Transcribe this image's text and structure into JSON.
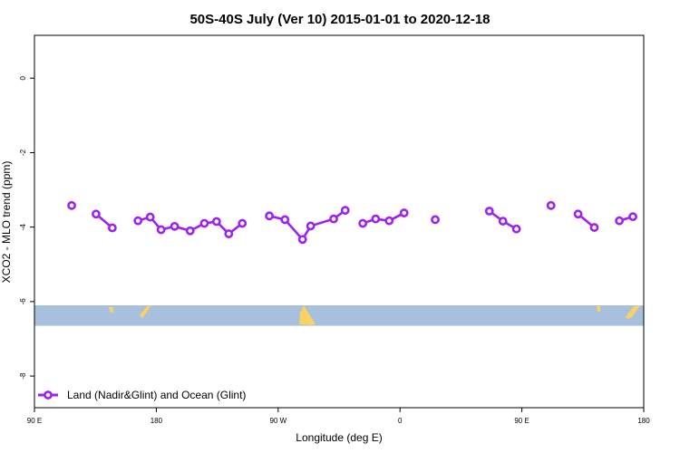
{
  "chart_data": {
    "type": "line",
    "title": "50S-40S July (Ver 10)   2015-01-01 to 2020-12-18",
    "xlabel": "Longitude (deg E)",
    "ylabel": "XCO2 - MLO trend (ppm)",
    "xlim": [
      90,
      540
    ],
    "ylim": [
      -8.85,
      1.15
    ],
    "x_ticks": [
      {
        "value": 90,
        "label": "90 E"
      },
      {
        "value": 180,
        "label": "180"
      },
      {
        "value": 270,
        "label": "90 W"
      },
      {
        "value": 360,
        "label": "0"
      },
      {
        "value": 450,
        "label": "90 E"
      },
      {
        "value": 540,
        "label": "180"
      }
    ],
    "y_ticks": [
      {
        "value": 0,
        "label": "0"
      },
      {
        "value": -2,
        "label": "-2"
      },
      {
        "value": -4,
        "label": "-4"
      },
      {
        "value": -6,
        "label": "-6"
      },
      {
        "value": -8,
        "label": "-8"
      }
    ],
    "legend": {
      "position": "bottom-left"
    },
    "series": [
      {
        "name": "Land (Nadir&Glint) and Ocean (Glint)",
        "color": "#a020f0",
        "segments": [
          [
            [
              117.5,
              -3.42
            ]
          ],
          [
            [
              135.5,
              -3.65
            ],
            [
              147.5,
              -4.02
            ]
          ],
          [
            [
              166.5,
              -3.83
            ],
            [
              175.5,
              -3.73
            ],
            [
              183.5,
              -4.07
            ],
            [
              193.5,
              -3.98
            ],
            [
              205,
              -4.1
            ],
            [
              215.5,
              -3.9
            ],
            [
              224.5,
              -3.85
            ],
            [
              233.5,
              -4.18
            ],
            [
              243.5,
              -3.9
            ]
          ],
          [
            [
              263.5,
              -3.7
            ],
            [
              275,
              -3.8
            ],
            [
              288,
              -4.33
            ],
            [
              294,
              -3.97
            ],
            [
              311,
              -3.78
            ],
            [
              319.5,
              -3.55
            ]
          ],
          [
            [
              332.5,
              -3.9
            ],
            [
              342,
              -3.78
            ],
            [
              352,
              -3.83
            ],
            [
              363,
              -3.62
            ]
          ],
          [
            [
              386,
              -3.8
            ]
          ],
          [
            [
              426,
              -3.57
            ],
            [
              436,
              -3.84
            ],
            [
              446,
              -4.05
            ]
          ],
          [
            [
              471.5,
              -3.42
            ]
          ],
          [
            [
              491.5,
              -3.65
            ],
            [
              503.5,
              -4.01
            ]
          ],
          [
            [
              522,
              -3.83
            ],
            [
              532,
              -3.72
            ]
          ]
        ]
      }
    ],
    "map_band": {
      "y_top": -6.1,
      "y_bottom": -6.65,
      "ocean_color": "#a8bfdd",
      "land_color": "#f8d262"
    }
  }
}
